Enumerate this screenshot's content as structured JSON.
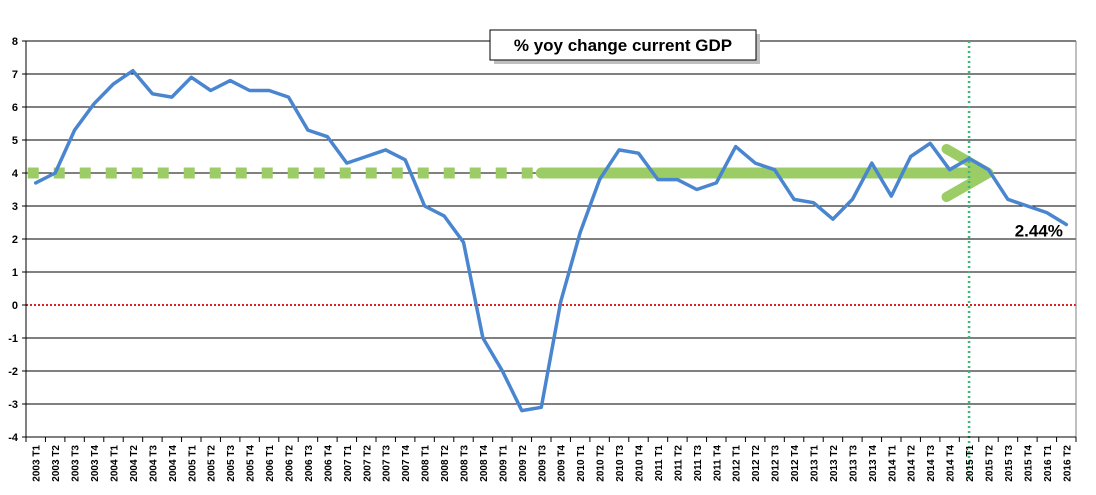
{
  "chart_data": {
    "type": "line",
    "title": "% yoy change current GDP",
    "xlabel": "",
    "ylabel": "",
    "ylim": [
      -4,
      8
    ],
    "yticks": [
      -4,
      -3,
      -2,
      -1,
      0,
      1,
      2,
      3,
      4,
      5,
      6,
      7,
      8
    ],
    "grid": true,
    "categories": [
      "2003 T1",
      "2003 T2",
      "2003 T3",
      "2003 T4",
      "2004 T1",
      "2004 T2",
      "2004 T3",
      "2004 T4",
      "2005 T1",
      "2005 T2",
      "2005 T3",
      "2005 T4",
      "2006 T1",
      "2006 T2",
      "2006 T3",
      "2006 T4",
      "2007 T1",
      "2007 T2",
      "2007 T3",
      "2007 T4",
      "2008 T1",
      "2008 T2",
      "2008 T3",
      "2008 T4",
      "2009 T1",
      "2009 T2",
      "2009 T3",
      "2009 T4",
      "2010 T1",
      "2010 T2",
      "2010 T3",
      "2010 T4",
      "2011 T1",
      "2011 T2",
      "2011 T3",
      "2011 T4",
      "2012 T1",
      "2012 T2",
      "2012 T3",
      "2012 T4",
      "2013 T1",
      "2013 T2",
      "2013 T3",
      "2013 T4",
      "2014 T1",
      "2014 T2",
      "2014 T3",
      "2014 T4",
      "2015 T1",
      "2015 T2",
      "2015 T3",
      "2015 T4",
      "2016 T1",
      "2016 T2"
    ],
    "series": [
      {
        "color": "#4a86d0",
        "values": [
          3.7,
          4.0,
          5.3,
          6.1,
          6.7,
          7.1,
          6.4,
          6.3,
          6.9,
          6.5,
          6.8,
          6.5,
          6.5,
          6.3,
          5.3,
          5.1,
          4.3,
          4.5,
          4.7,
          4.4,
          3.0,
          2.7,
          1.9,
          -1.0,
          -2.0,
          -3.2,
          -3.1,
          0.1,
          2.2,
          3.8,
          4.7,
          4.6,
          3.8,
          3.8,
          3.5,
          3.7,
          4.8,
          4.3,
          4.1,
          3.2,
          3.1,
          2.6,
          3.2,
          4.3,
          3.3,
          4.5,
          4.9,
          4.1,
          4.44,
          4.1,
          3.2,
          3.0,
          2.8,
          2.44
        ]
      }
    ],
    "reference_lines": [
      {
        "type": "horizontal",
        "y": 0,
        "color": "#e02020",
        "style": "dotted"
      },
      {
        "type": "vertical",
        "category": "2015 T1",
        "color": "#3cb878",
        "style": "dotted"
      }
    ],
    "trend": {
      "color": "#9ccc65",
      "level": 4.0,
      "dashed_from": "2003 T1",
      "solid_from": "2009 T3",
      "arrow_to": "2015 T2"
    },
    "annotation": {
      "text": "2.44%",
      "category": "2016 T1",
      "y": 2.2
    }
  }
}
